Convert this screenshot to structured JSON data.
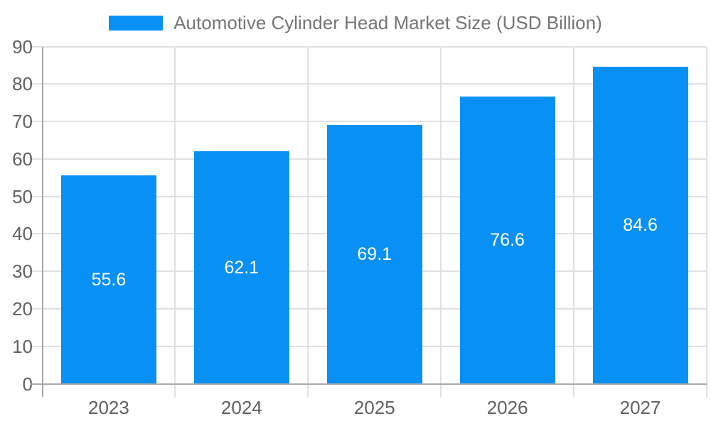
{
  "legend": {
    "items": [
      {
        "label": "Automotive Cylinder Head Market Size (USD Billion)",
        "color": "#0990f5"
      }
    ]
  },
  "chart_data": {
    "type": "bar",
    "title": "Automotive Cylinder Head Market Size (USD Billion)",
    "categories": [
      "2023",
      "2024",
      "2025",
      "2026",
      "2027"
    ],
    "values": [
      55.6,
      62.1,
      69.1,
      76.6,
      84.6
    ],
    "value_labels": [
      "55.6",
      "62.1",
      "69.1",
      "76.6",
      "84.6"
    ],
    "y_ticks": [
      0,
      10,
      20,
      30,
      40,
      50,
      60,
      70,
      80,
      90
    ],
    "ylim": [
      0,
      90
    ],
    "xlabel": "",
    "ylabel": "",
    "grid": true,
    "legend_position": "top",
    "style": {
      "bar_color": "#0990f5",
      "value_label_color": "#ffffff",
      "gridline_color": "#e0e0e0",
      "axis_color": "#a8a8a8",
      "tick_label_color": "#616161",
      "title_color": "#757575",
      "background": "#ffffff"
    }
  }
}
